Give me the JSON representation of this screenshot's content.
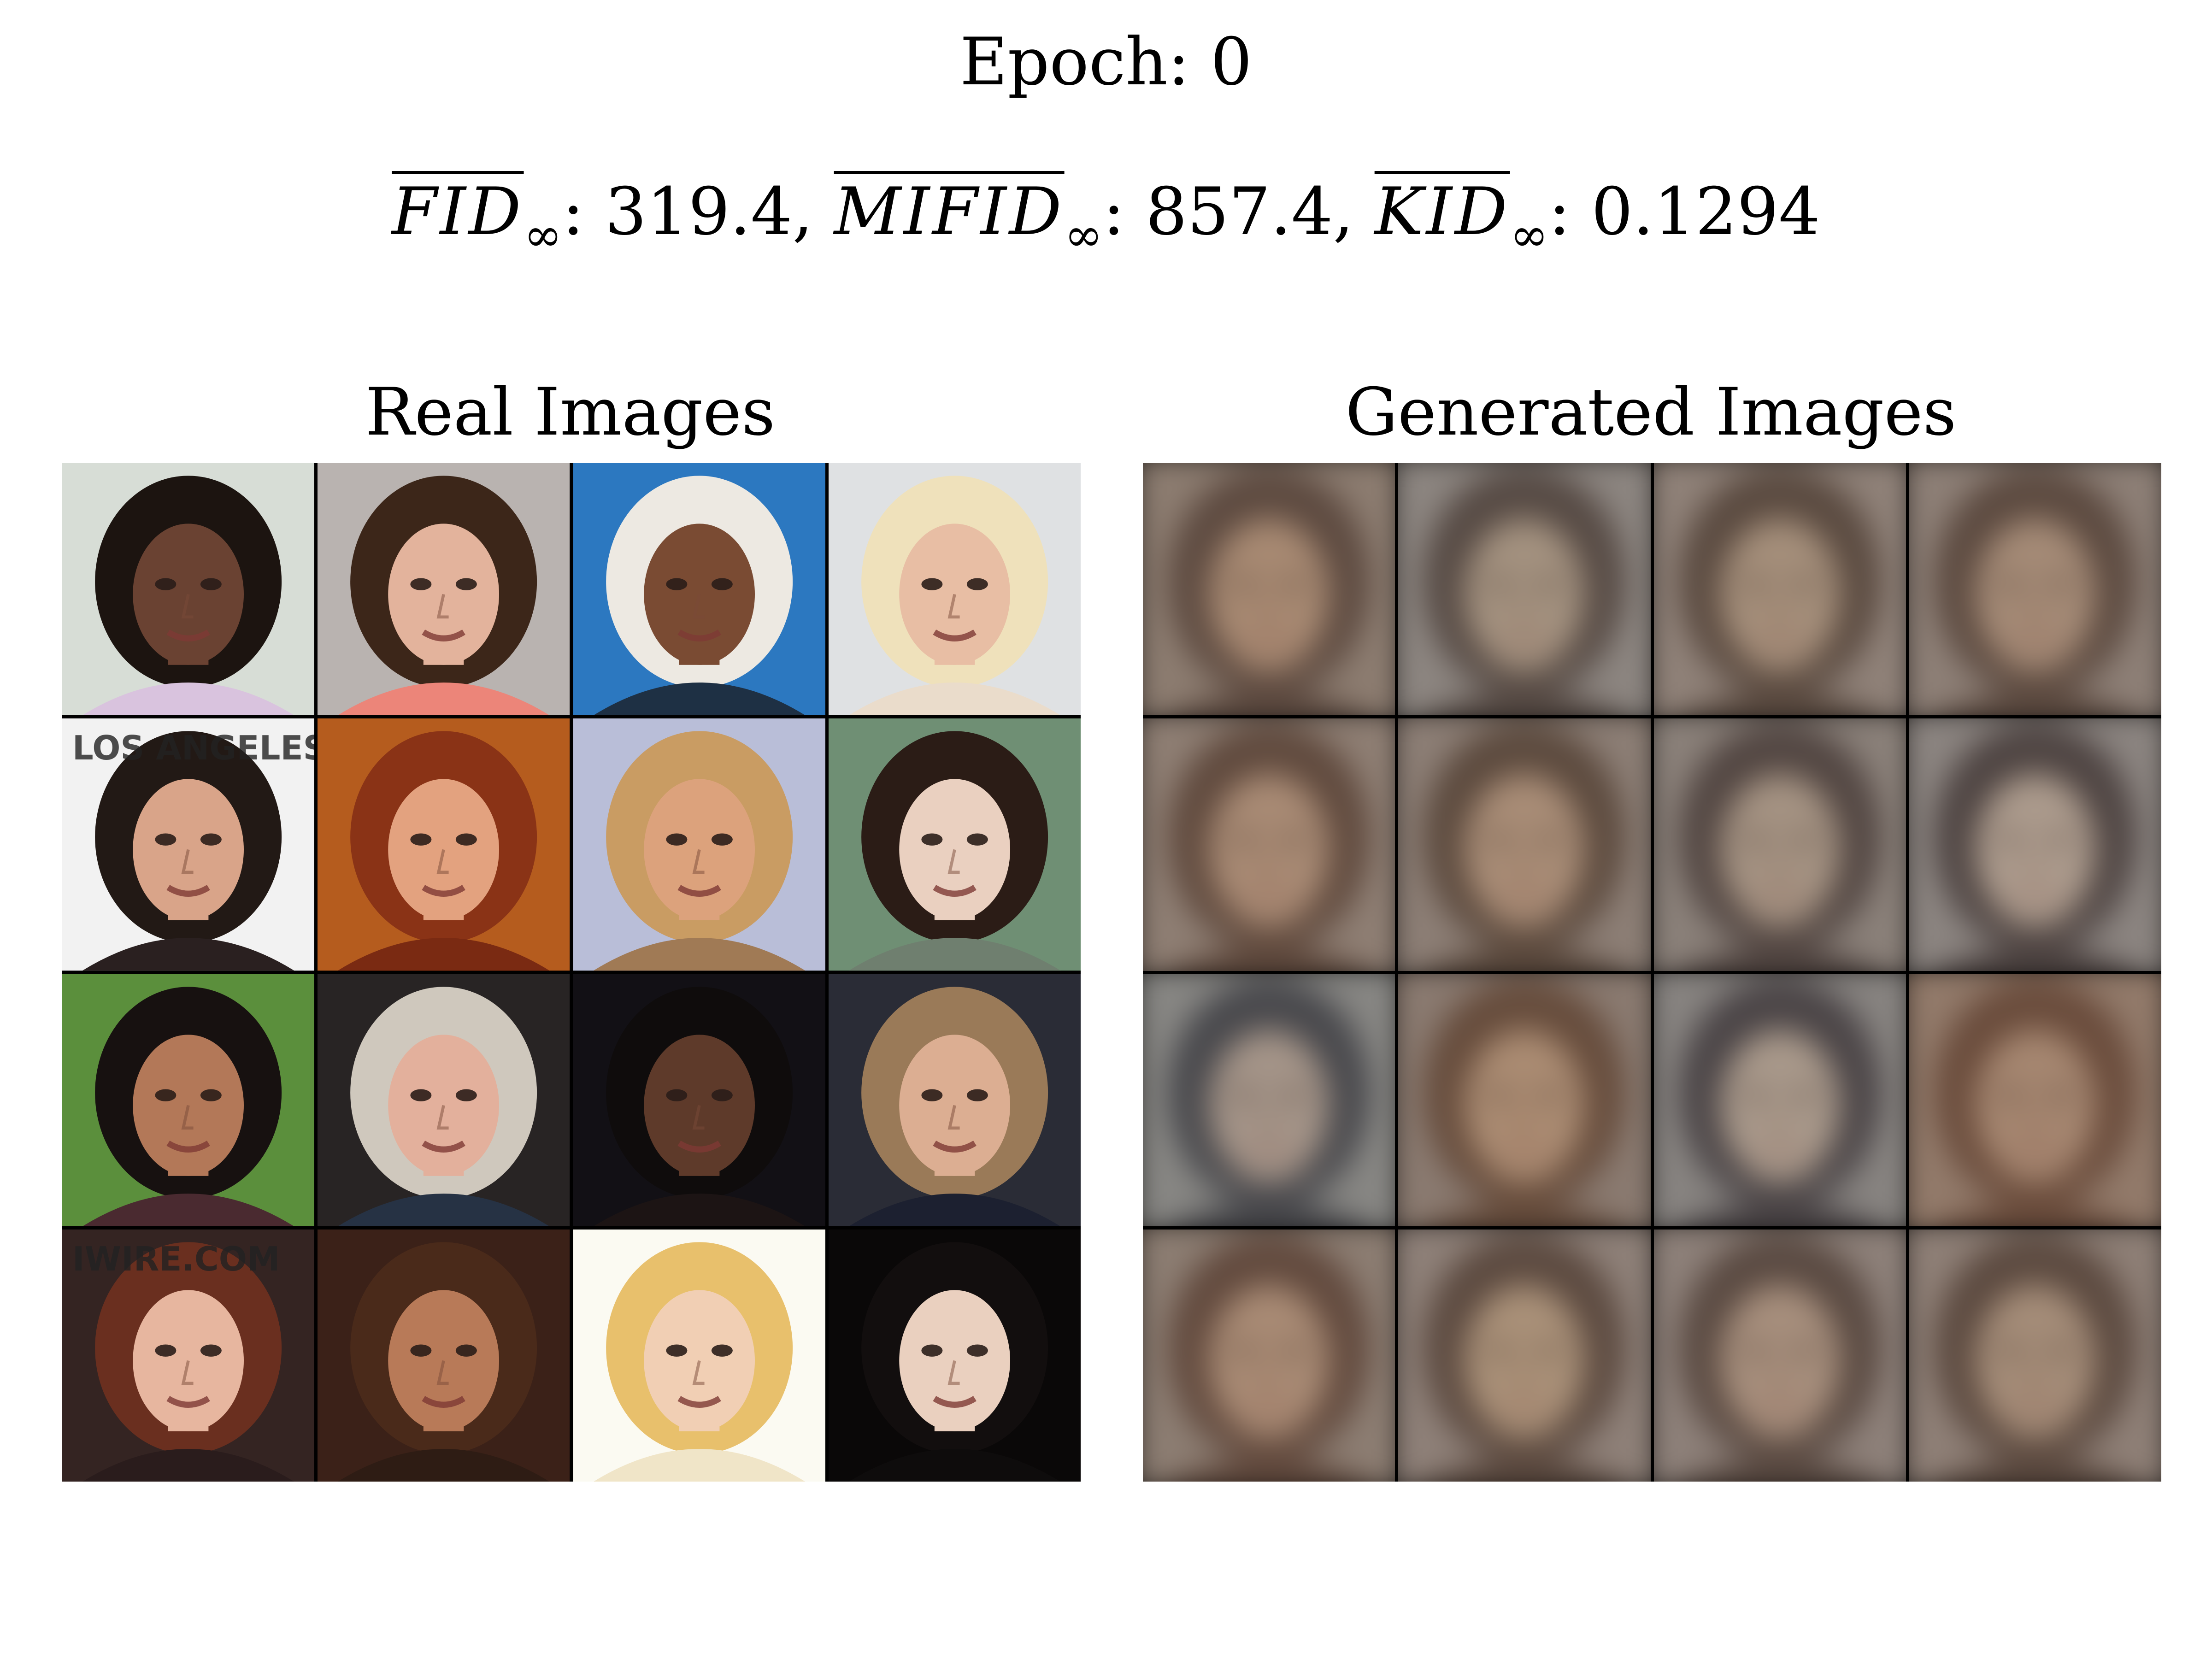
{
  "title": "Epoch: 0",
  "metrics": [
    {
      "name": "FID",
      "sub": "∞",
      "value": ": 319.4,"
    },
    {
      "name": "MIFID",
      "sub": "∞",
      "value": ": 857.4,"
    },
    {
      "name": "KID",
      "sub": "∞",
      "value": ": 0.1294"
    }
  ],
  "panels": {
    "real_title": "Real Images",
    "generated_title": "Generated Images"
  },
  "real_images": [
    {
      "bg": "#d7ddd6",
      "skin": "#6a4232",
      "hair": "#1c1410",
      "shirt": "#d9c3de"
    },
    {
      "bg": "#b9b3b0",
      "skin": "#e3b39c",
      "hair": "#3c2619",
      "shirt": "#ec8579"
    },
    {
      "bg": "#2c78c0",
      "skin": "#7a4b33",
      "hair": "#ede9e2",
      "shirt": "#1e3044"
    },
    {
      "bg": "#dfe1e3",
      "skin": "#e8bea4",
      "hair": "#efe1bb",
      "shirt": "#eadccb"
    },
    {
      "bg": "#f2f2f2",
      "skin": "#d9a489",
      "hair": "#221915",
      "shirt": "#2a2020",
      "text": "LOS ANGELES"
    },
    {
      "bg": "#b55c1e",
      "skin": "#e3a27f",
      "hair": "#8a3316",
      "shirt": "#7a2a12"
    },
    {
      "bg": "#b9bed8",
      "skin": "#dca27c",
      "hair": "#c99c63",
      "shirt": "#a07a55"
    },
    {
      "bg": "#6f8f74",
      "skin": "#ead0c0",
      "hair": "#2b1c16",
      "shirt": "#6f7f6f"
    },
    {
      "bg": "#5b8f3c",
      "skin": "#b37858",
      "hair": "#171110",
      "shirt": "#4a2a30"
    },
    {
      "bg": "#282424",
      "skin": "#e3b09c",
      "hair": "#cfc8bd",
      "shirt": "#263244"
    },
    {
      "bg": "#121015",
      "skin": "#5e3a2a",
      "hair": "#0f0c0c",
      "shirt": "#1c1414"
    },
    {
      "bg": "#2a2c36",
      "skin": "#dcae92",
      "hair": "#9a7a58",
      "shirt": "#1c2030"
    },
    {
      "bg": "#342422",
      "skin": "#e7b69f",
      "hair": "#6a2f1f",
      "shirt": "#2a1c1c",
      "text": "IWIRE.COM"
    },
    {
      "bg": "#3b2118",
      "skin": "#b87a58",
      "hair": "#4a2a1a",
      "shirt": "#2e1c14"
    },
    {
      "bg": "#fbfaf2",
      "skin": "#f1cfb4",
      "hair": "#e8c06c",
      "shirt": "#f0e5c8"
    },
    {
      "bg": "#0a0808",
      "skin": "#ead0bf",
      "hair": "#120e0e",
      "shirt": "#0e0c0c"
    }
  ],
  "generated_images": [
    {
      "bg": "#8c7c70",
      "skin": "#a78972",
      "hair": "#5d4a40"
    },
    {
      "bg": "#8c8580",
      "skin": "#a3917f",
      "hair": "#564a44"
    },
    {
      "bg": "#8f8178",
      "skin": "#a48e7a",
      "hair": "#5a4a40"
    },
    {
      "bg": "#8d7f76",
      "skin": "#a48a76",
      "hair": "#5c4a40"
    },
    {
      "bg": "#8e7e73",
      "skin": "#a88a74",
      "hair": "#604a3e"
    },
    {
      "bg": "#8c7e75",
      "skin": "#a88c76",
      "hair": "#5c4a3e"
    },
    {
      "bg": "#8a8079",
      "skin": "#a49282",
      "hair": "#524642"
    },
    {
      "bg": "#8b8480",
      "skin": "#ab9a8c",
      "hair": "#4e4442"
    },
    {
      "bg": "#878683",
      "skin": "#a49488",
      "hair": "#48484c"
    },
    {
      "bg": "#8a7a70",
      "skin": "#aa8b72",
      "hair": "#664c3c"
    },
    {
      "bg": "#878380",
      "skin": "#a8988a",
      "hair": "#4a4446"
    },
    {
      "bg": "#927a6a",
      "skin": "#a58670",
      "hair": "#6a4c3c"
    },
    {
      "bg": "#8c7d72",
      "skin": "#a88a74",
      "hair": "#624a3e"
    },
    {
      "bg": "#8e8078",
      "skin": "#a99078",
      "hair": "#5c4a40"
    },
    {
      "bg": "#8d8079",
      "skin": "#a68e7c",
      "hair": "#5a4a42"
    },
    {
      "bg": "#8e7f76",
      "skin": "#a48c78",
      "hair": "#5c4a40"
    }
  ]
}
